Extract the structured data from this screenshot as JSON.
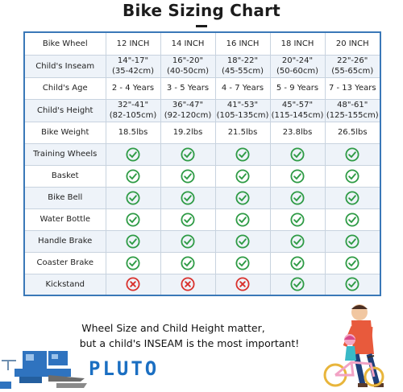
{
  "title": "Bike Sizing Chart",
  "table": {
    "corner": "Bike Wheel",
    "columns": [
      "12 INCH",
      "14 INCH",
      "16 INCH",
      "18 INCH",
      "20 INCH"
    ],
    "size_rows": [
      {
        "label": "Child's Inseam",
        "cells": [
          [
            "14\"-17\"",
            "(35-42cm)"
          ],
          [
            "16\"-20\"",
            "(40-50cm)"
          ],
          [
            "18\"-22\"",
            "(45-55cm)"
          ],
          [
            "20\"-24\"",
            "(50-60cm)"
          ],
          [
            "22\"-26\"",
            "(55-65cm)"
          ]
        ]
      },
      {
        "label": "Child's Age",
        "cells": [
          [
            "2 - 4 Years"
          ],
          [
            "3 - 5 Years"
          ],
          [
            "4 - 7 Years"
          ],
          [
            "5 - 9 Years"
          ],
          [
            "7 - 13 Years"
          ]
        ]
      },
      {
        "label": "Child's Height",
        "cells": [
          [
            "32\"-41\"",
            "(82-105cm)"
          ],
          [
            "36\"-47\"",
            "(92-120cm)"
          ],
          [
            "41\"-53\"",
            "(105-135cm)"
          ],
          [
            "45\"-57\"",
            "(115-145cm)"
          ],
          [
            "48\"-61\"",
            "(125-155cm)"
          ]
        ]
      },
      {
        "label": "Bike Weight",
        "cells": [
          [
            "18.5lbs"
          ],
          [
            "19.2lbs"
          ],
          [
            "21.5lbs"
          ],
          [
            "23.8lbs"
          ],
          [
            "26.5lbs"
          ]
        ]
      }
    ],
    "feature_rows": [
      {
        "label": "Training Wheels",
        "values": [
          true,
          true,
          true,
          true,
          true
        ]
      },
      {
        "label": "Basket",
        "values": [
          true,
          true,
          true,
          true,
          true
        ]
      },
      {
        "label": "Bike Bell",
        "values": [
          true,
          true,
          true,
          true,
          true
        ]
      },
      {
        "label": "Water Bottle",
        "values": [
          true,
          true,
          true,
          true,
          true
        ]
      },
      {
        "label": "Handle Brake",
        "values": [
          true,
          true,
          true,
          true,
          true
        ]
      },
      {
        "label": "Coaster Brake",
        "values": [
          true,
          true,
          true,
          true,
          true
        ]
      },
      {
        "label": "Kickstand",
        "values": [
          false,
          false,
          false,
          true,
          true
        ]
      }
    ]
  },
  "tagline_1": "Wheel Size and Child Height matter,",
  "tagline_2": "but a child's INSEAM is the most important!",
  "brand": "PLUTO",
  "colors": {
    "table_border": "#3a78b8",
    "check_green": "#2e9b45",
    "cross_red": "#d9302c",
    "brand_blue": "#1b6fc2",
    "row_alt": "#eef3f9"
  },
  "icons": {
    "yes": "check-circle-icon",
    "no": "x-circle-icon"
  }
}
